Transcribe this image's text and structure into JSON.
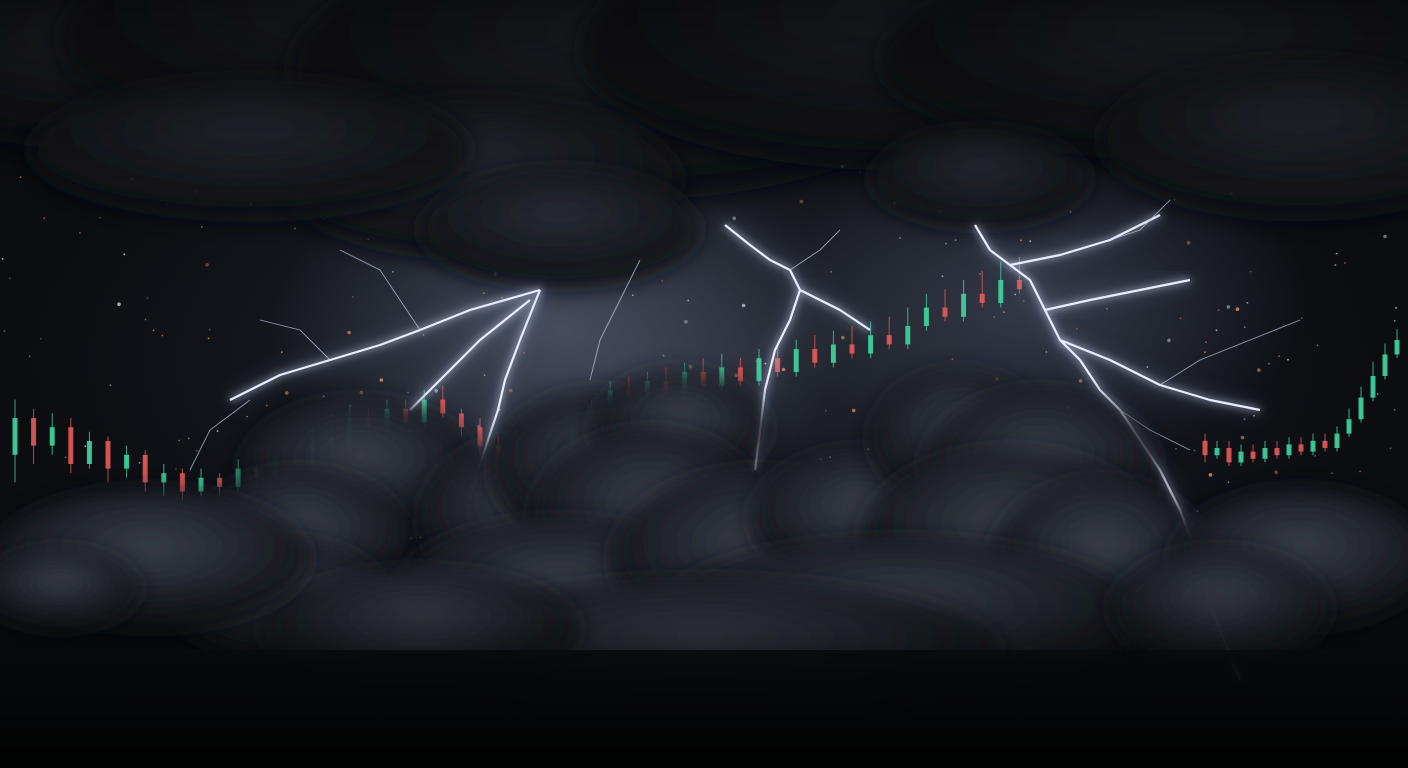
{
  "scene": {
    "description_tag": "storm-over-market",
    "colors": {
      "sky_dark": "#0b0d11",
      "sky_mid": "#22262e",
      "cloud": "#15181d",
      "cloud_lit": "#3a3f4a",
      "lightning": "#e8eeff",
      "lightning_glow": "#9fb2ff",
      "candle_up": "#3fd3a0",
      "candle_down": "#e25a5a",
      "spark": "#e09070"
    }
  },
  "chart_data": {
    "type": "candlestick",
    "series": [
      {
        "values": [
          [
            12,
            20,
            6,
            24
          ],
          [
            20,
            14,
            10,
            22
          ],
          [
            14,
            18,
            12,
            21
          ],
          [
            18,
            10,
            8,
            20
          ],
          [
            10,
            15,
            9,
            17
          ],
          [
            15,
            9,
            6,
            16
          ],
          [
            9,
            12,
            7,
            14
          ],
          [
            12,
            6,
            4,
            13
          ],
          [
            6,
            8,
            3,
            10
          ],
          [
            8,
            4,
            2,
            9
          ],
          [
            4,
            7,
            3,
            9
          ],
          [
            7,
            5,
            3,
            8
          ],
          [
            5,
            9,
            4,
            11
          ],
          [
            9,
            7,
            5,
            10
          ],
          [
            7,
            12,
            6,
            13
          ],
          [
            12,
            10,
            8,
            14
          ],
          [
            10,
            16,
            9,
            18
          ],
          [
            16,
            14,
            12,
            19
          ],
          [
            14,
            20,
            13,
            23
          ],
          [
            20,
            18,
            16,
            22
          ],
          [
            18,
            22,
            17,
            24
          ],
          [
            22,
            19,
            18,
            24
          ],
          [
            19,
            24,
            18,
            26
          ],
          [
            24,
            21,
            20,
            27
          ],
          [
            21,
            18,
            16,
            22
          ],
          [
            18,
            14,
            12,
            20
          ],
          [
            14,
            10,
            8,
            16
          ],
          [
            10,
            13,
            9,
            15
          ],
          [
            13,
            9,
            7,
            14
          ],
          [
            9,
            14,
            8,
            16
          ],
          [
            14,
            18,
            13,
            20
          ],
          [
            18,
            22,
            17,
            24
          ],
          [
            22,
            26,
            21,
            28
          ],
          [
            26,
            24,
            23,
            29
          ],
          [
            24,
            28,
            23,
            30
          ],
          [
            28,
            25,
            24,
            31
          ],
          [
            25,
            30,
            24,
            32
          ],
          [
            30,
            27,
            26,
            33
          ],
          [
            27,
            31,
            26,
            34
          ],
          [
            31,
            28,
            27,
            33
          ],
          [
            28,
            33,
            27,
            35
          ],
          [
            33,
            30,
            29,
            36
          ],
          [
            30,
            35,
            29,
            37
          ],
          [
            35,
            32,
            31,
            38
          ],
          [
            32,
            36,
            31,
            39
          ],
          [
            36,
            34,
            33,
            40
          ],
          [
            34,
            38,
            33,
            41
          ],
          [
            38,
            36,
            35,
            42
          ],
          [
            36,
            40,
            35,
            44
          ],
          [
            40,
            44,
            39,
            47
          ],
          [
            44,
            42,
            41,
            48
          ],
          [
            42,
            47,
            41,
            50
          ],
          [
            47,
            45,
            44,
            52
          ],
          [
            45,
            50,
            44,
            54
          ],
          [
            50,
            48,
            47,
            55
          ]
        ]
      },
      {
        "values": [
          [
            22,
            18,
            16,
            24
          ],
          [
            18,
            20,
            17,
            22
          ],
          [
            20,
            16,
            15,
            22
          ],
          [
            16,
            19,
            15,
            21
          ],
          [
            19,
            17,
            16,
            21
          ],
          [
            17,
            20,
            16,
            22
          ],
          [
            20,
            18,
            17,
            22
          ],
          [
            18,
            21,
            17,
            23
          ],
          [
            21,
            19,
            18,
            23
          ],
          [
            19,
            22,
            18,
            24
          ],
          [
            22,
            20,
            19,
            24
          ],
          [
            20,
            24,
            19,
            26
          ],
          [
            24,
            28,
            23,
            31
          ],
          [
            28,
            34,
            27,
            37
          ],
          [
            34,
            40,
            33,
            44
          ],
          [
            40,
            46,
            39,
            49
          ],
          [
            46,
            50,
            45,
            53
          ]
        ]
      }
    ]
  }
}
